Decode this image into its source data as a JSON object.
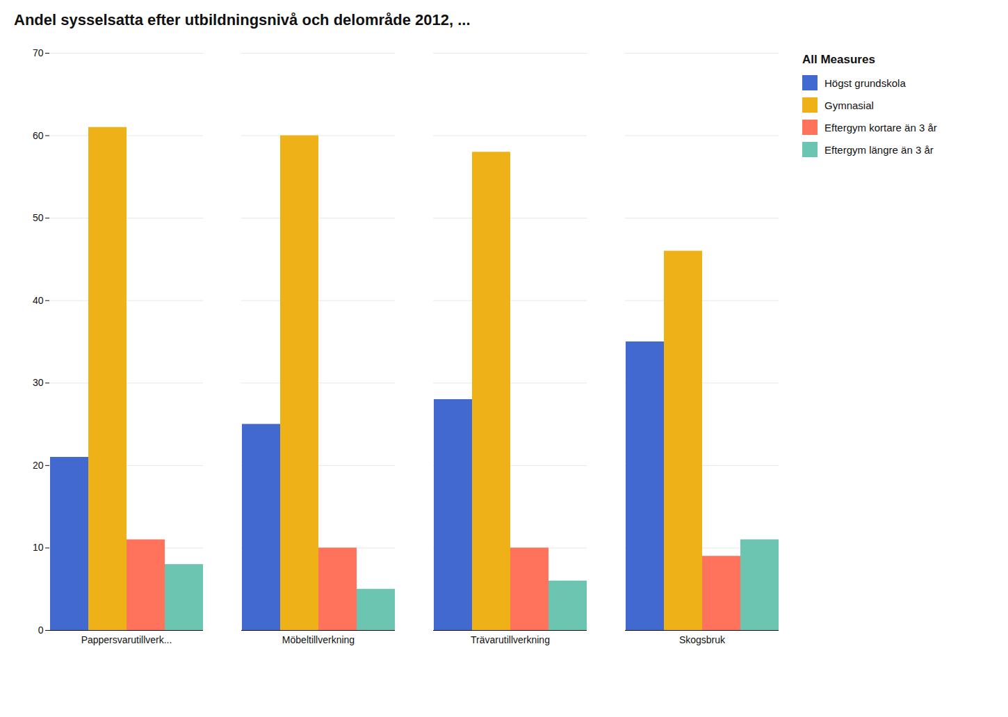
{
  "chart_data": {
    "type": "bar",
    "title": "Andel sysselsatta efter utbildningsnivå och delområde 2012, ...",
    "categories": [
      "Pappersvarutillverk...",
      "Möbeltillverkning",
      "Trävarutillverkning",
      "Skogsbruk"
    ],
    "series": [
      {
        "name": "Högst grundskola",
        "values": [
          21,
          25,
          28,
          35
        ]
      },
      {
        "name": "Gymnasial",
        "values": [
          61,
          60,
          58,
          46
        ]
      },
      {
        "name": "Eftergym kortare än 3 år",
        "values": [
          11,
          10,
          10,
          9
        ]
      },
      {
        "name": "Eftergym längre än 3 år",
        "values": [
          8,
          5,
          6,
          11
        ]
      }
    ],
    "legend_title": "All Measures",
    "ylim": [
      0,
      70
    ],
    "yticks": [
      0,
      10,
      20,
      30,
      40,
      50,
      60,
      70
    ],
    "grid": true,
    "legend": "right"
  }
}
